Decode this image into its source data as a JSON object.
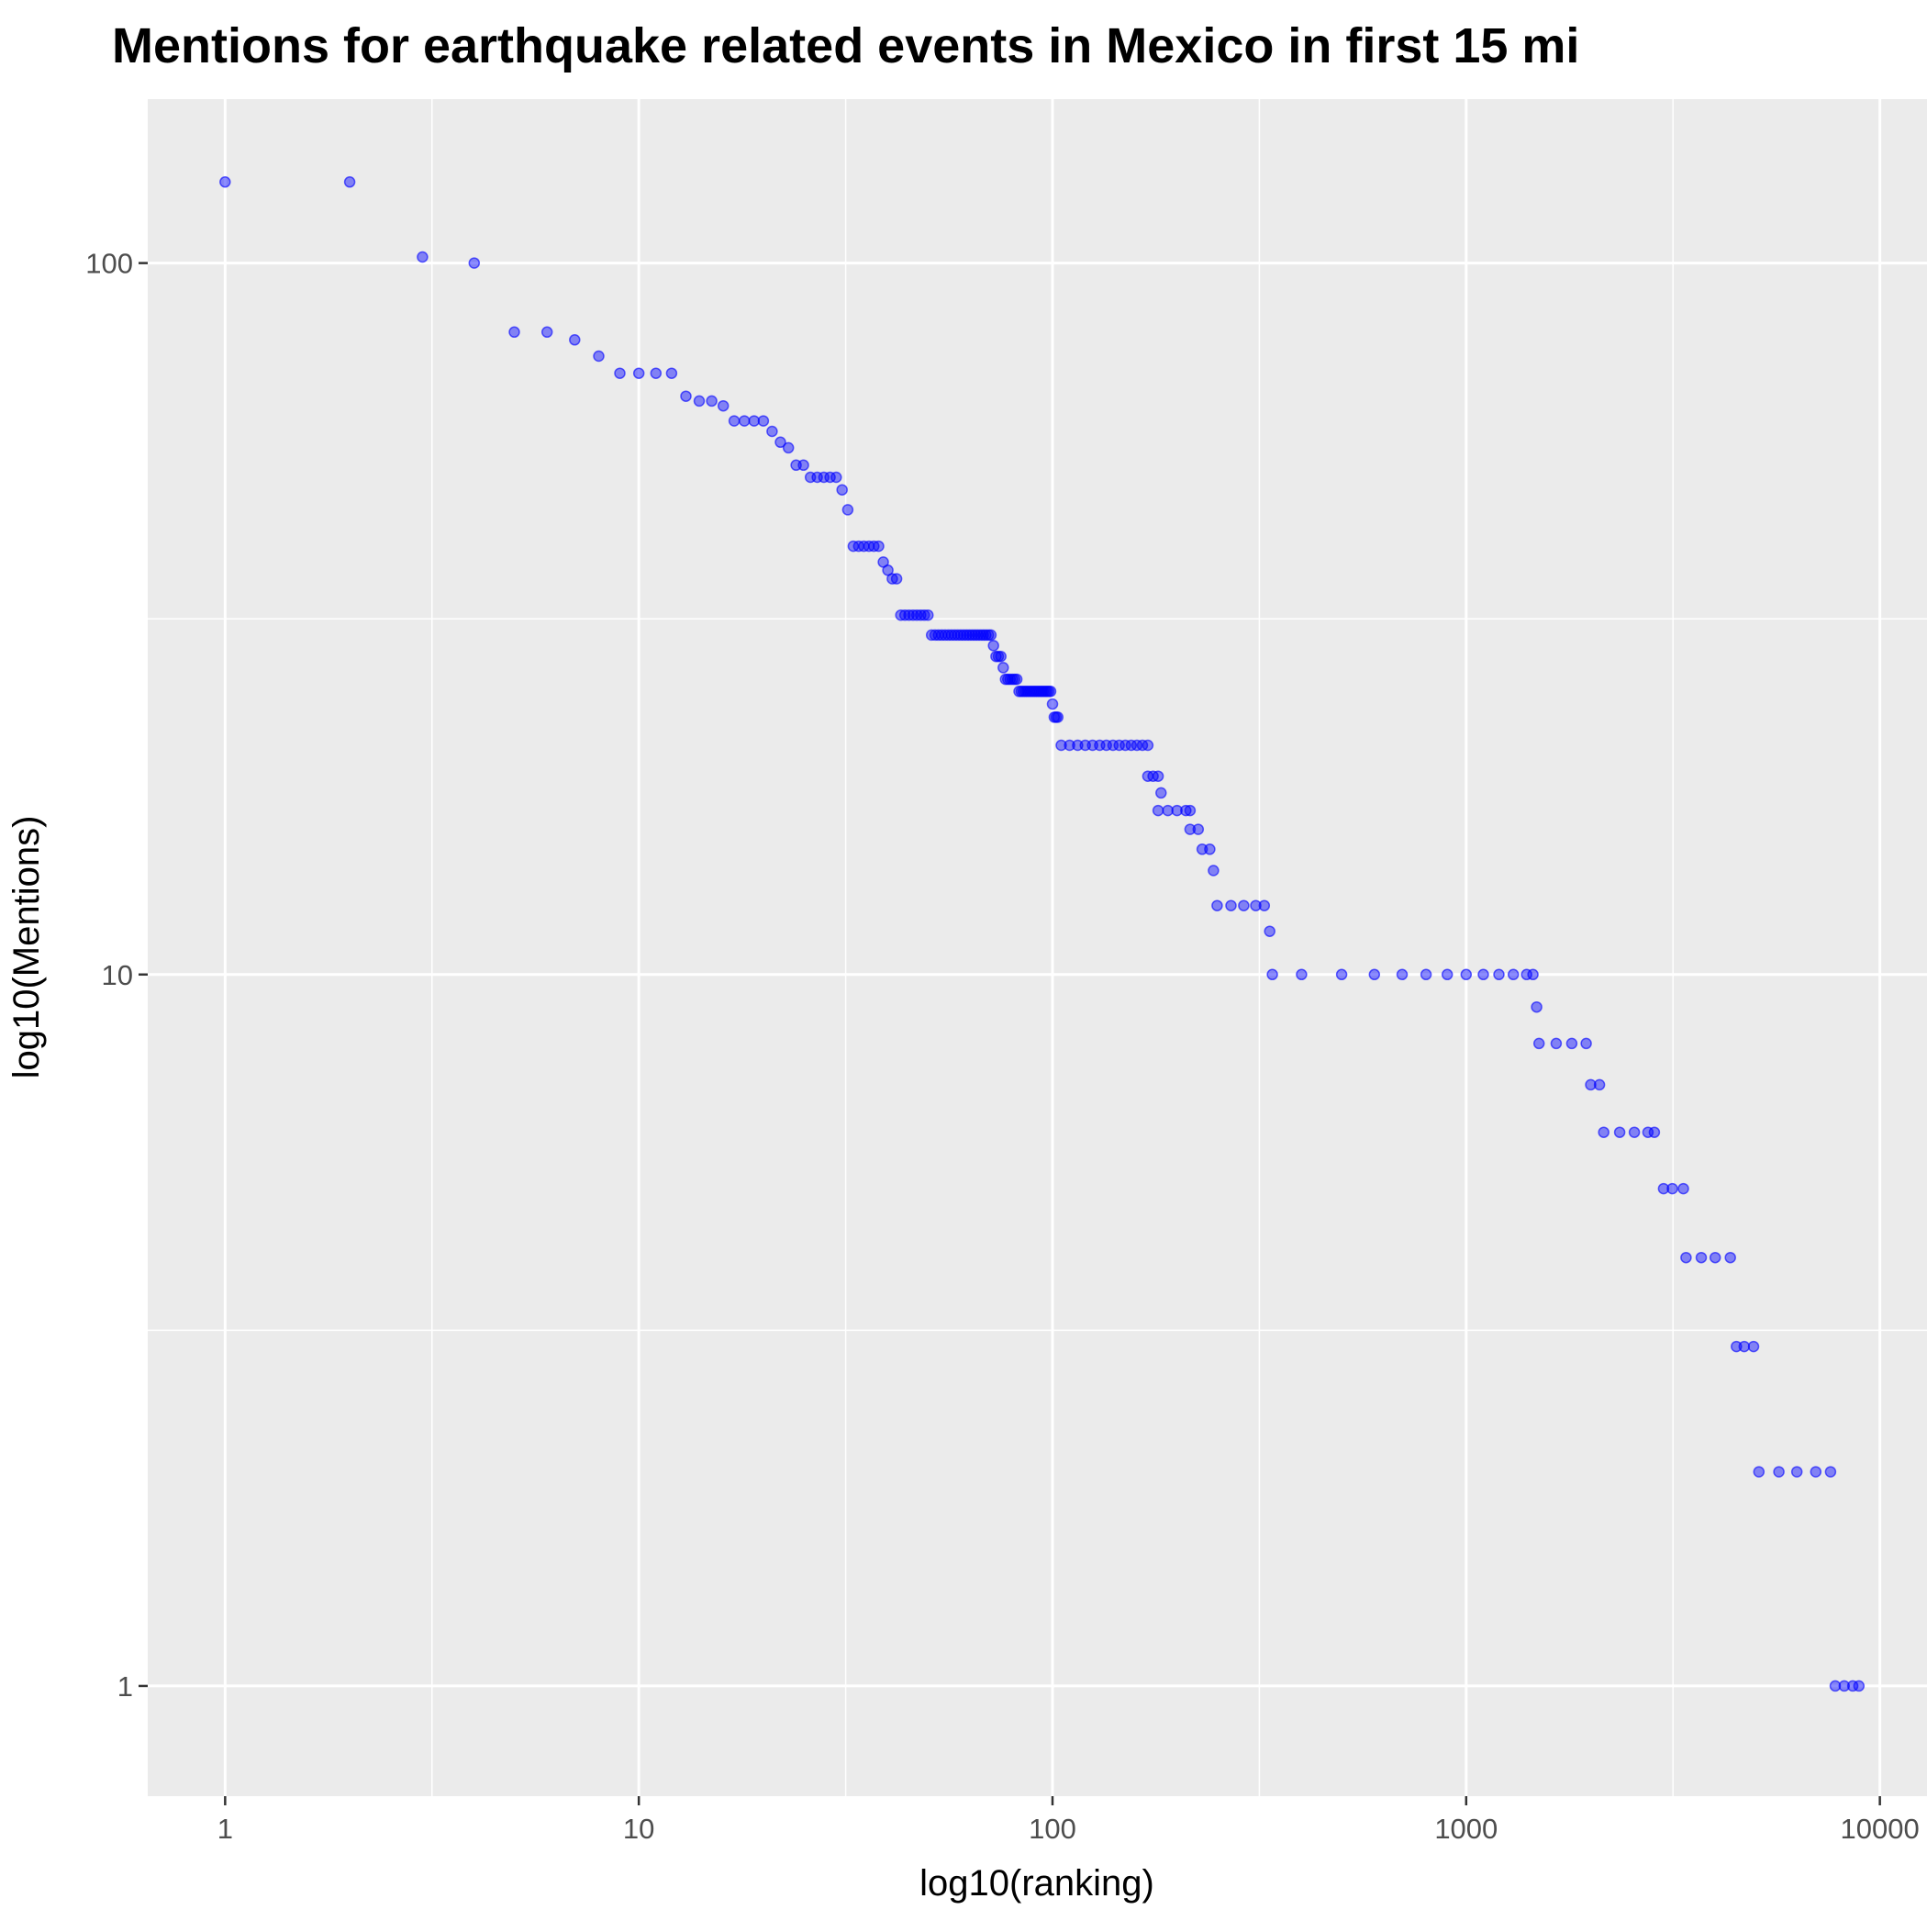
{
  "chart_data": {
    "type": "scatter",
    "title": "Mentions for earthquake related events in Mexico in first 15 mi",
    "xlabel": "log10(ranking)",
    "ylabel": "log10(Mentions)",
    "x_scale": "log10",
    "y_scale": "log10",
    "xlim": [
      0.65,
      13000
    ],
    "ylim": [
      0.7,
      170
    ],
    "x_ticks": [
      {
        "value": 1,
        "label": "1"
      },
      {
        "value": 10,
        "label": "10"
      },
      {
        "value": 100,
        "label": "100"
      },
      {
        "value": 1000,
        "label": "1000"
      },
      {
        "value": 10000,
        "label": "10000"
      }
    ],
    "y_ticks": [
      {
        "value": 1,
        "label": "1"
      },
      {
        "value": 10,
        "label": "10"
      },
      {
        "value": 100,
        "label": "100"
      }
    ],
    "grid": true,
    "background": "#ebebeb",
    "grid_color": "#ffffff",
    "point_color": "#0000ff",
    "point_alpha": 0.45,
    "legend": "none",
    "series": [
      {
        "points": [
          [
            1,
            130
          ],
          [
            2,
            130
          ],
          [
            3,
            102
          ],
          [
            4,
            100
          ],
          [
            5,
            80
          ],
          [
            6,
            80
          ],
          [
            7,
            78
          ],
          [
            8,
            74
          ],
          [
            9,
            70
          ],
          [
            10,
            70
          ],
          [
            11,
            70
          ],
          [
            12,
            70
          ],
          [
            13,
            65
          ],
          [
            14,
            64
          ],
          [
            15,
            64
          ],
          [
            16,
            63
          ],
          [
            17,
            60
          ],
          [
            18,
            60
          ],
          [
            19,
            60
          ],
          [
            20,
            60
          ],
          [
            21,
            58
          ],
          [
            22,
            56
          ],
          [
            23,
            55
          ],
          [
            24,
            52
          ],
          [
            25,
            52
          ],
          [
            26,
            50
          ],
          [
            27,
            50
          ],
          [
            28,
            50
          ],
          [
            29,
            50
          ],
          [
            30,
            50
          ],
          [
            31,
            48
          ],
          [
            32,
            45
          ],
          [
            33,
            40
          ],
          [
            34,
            40
          ],
          [
            35,
            40
          ],
          [
            36,
            40
          ],
          [
            37,
            40
          ],
          [
            38,
            40
          ],
          [
            39,
            38
          ],
          [
            40,
            37
          ],
          [
            41,
            36
          ],
          [
            42,
            36
          ],
          [
            43,
            32
          ],
          [
            44,
            32
          ],
          [
            45,
            32
          ],
          [
            46,
            32
          ],
          [
            47,
            32
          ],
          [
            48,
            32
          ],
          [
            49,
            32
          ],
          [
            50,
            32
          ],
          [
            51,
            30
          ],
          [
            52,
            30
          ],
          [
            53,
            30
          ],
          [
            54,
            30
          ],
          [
            55,
            30
          ],
          [
            56,
            30
          ],
          [
            57,
            30
          ],
          [
            58,
            30
          ],
          [
            59,
            30
          ],
          [
            60,
            30
          ],
          [
            61,
            30
          ],
          [
            62,
            30
          ],
          [
            63,
            30
          ],
          [
            64,
            30
          ],
          [
            65,
            30
          ],
          [
            66,
            30
          ],
          [
            67,
            30
          ],
          [
            68,
            30
          ],
          [
            69,
            30
          ],
          [
            70,
            30
          ],
          [
            71,
            30
          ],
          [
            72,
            29
          ],
          [
            73,
            28
          ],
          [
            74,
            28
          ],
          [
            75,
            28
          ],
          [
            76,
            27
          ],
          [
            77,
            26
          ],
          [
            78,
            26
          ],
          [
            79,
            26
          ],
          [
            80,
            26
          ],
          [
            81,
            26
          ],
          [
            82,
            26
          ],
          [
            83,
            25
          ],
          [
            84,
            25
          ],
          [
            85,
            25
          ],
          [
            86,
            25
          ],
          [
            87,
            25
          ],
          [
            88,
            25
          ],
          [
            89,
            25
          ],
          [
            90,
            25
          ],
          [
            91,
            25
          ],
          [
            92,
            25
          ],
          [
            93,
            25
          ],
          [
            94,
            25
          ],
          [
            95,
            25
          ],
          [
            96,
            25
          ],
          [
            97,
            25
          ],
          [
            98,
            25
          ],
          [
            99,
            25
          ],
          [
            100,
            24
          ],
          [
            101,
            23
          ],
          [
            102,
            23
          ],
          [
            103,
            23
          ],
          [
            105,
            21
          ],
          [
            110,
            21
          ],
          [
            115,
            21
          ],
          [
            120,
            21
          ],
          [
            125,
            21
          ],
          [
            130,
            21
          ],
          [
            135,
            21
          ],
          [
            140,
            21
          ],
          [
            145,
            21
          ],
          [
            150,
            21
          ],
          [
            155,
            21
          ],
          [
            160,
            21
          ],
          [
            165,
            21
          ],
          [
            170,
            21
          ],
          [
            170,
            19
          ],
          [
            175,
            19
          ],
          [
            180,
            19
          ],
          [
            183,
            18
          ],
          [
            180,
            17
          ],
          [
            190,
            17
          ],
          [
            200,
            17
          ],
          [
            210,
            17
          ],
          [
            215,
            17
          ],
          [
            215,
            16
          ],
          [
            225,
            16
          ],
          [
            230,
            15
          ],
          [
            240,
            15
          ],
          [
            245,
            14
          ],
          [
            250,
            12.5
          ],
          [
            270,
            12.5
          ],
          [
            290,
            12.5
          ],
          [
            310,
            12.5
          ],
          [
            325,
            12.5
          ],
          [
            335,
            11.5
          ],
          [
            340,
            10
          ],
          [
            400,
            10
          ],
          [
            500,
            10
          ],
          [
            600,
            10
          ],
          [
            700,
            10
          ],
          [
            800,
            10
          ],
          [
            900,
            10
          ],
          [
            1000,
            10
          ],
          [
            1100,
            10
          ],
          [
            1200,
            10
          ],
          [
            1300,
            10
          ],
          [
            1400,
            10
          ],
          [
            1450,
            10
          ],
          [
            1480,
            9
          ],
          [
            1500,
            8
          ],
          [
            1650,
            8
          ],
          [
            1800,
            8
          ],
          [
            1950,
            8
          ],
          [
            2000,
            7
          ],
          [
            2100,
            7
          ],
          [
            2150,
            6
          ],
          [
            2350,
            6
          ],
          [
            2550,
            6
          ],
          [
            2750,
            6
          ],
          [
            2850,
            6
          ],
          [
            3000,
            5
          ],
          [
            3150,
            5
          ],
          [
            3350,
            5
          ],
          [
            3400,
            4
          ],
          [
            3700,
            4
          ],
          [
            4000,
            4
          ],
          [
            4350,
            4
          ],
          [
            4500,
            3
          ],
          [
            4700,
            3
          ],
          [
            4950,
            3
          ],
          [
            5100,
            2
          ],
          [
            5700,
            2
          ],
          [
            6300,
            2
          ],
          [
            7000,
            2
          ],
          [
            7600,
            2
          ],
          [
            7800,
            1
          ],
          [
            8200,
            1
          ],
          [
            8600,
            1
          ],
          [
            8900,
            1
          ]
        ]
      }
    ]
  }
}
